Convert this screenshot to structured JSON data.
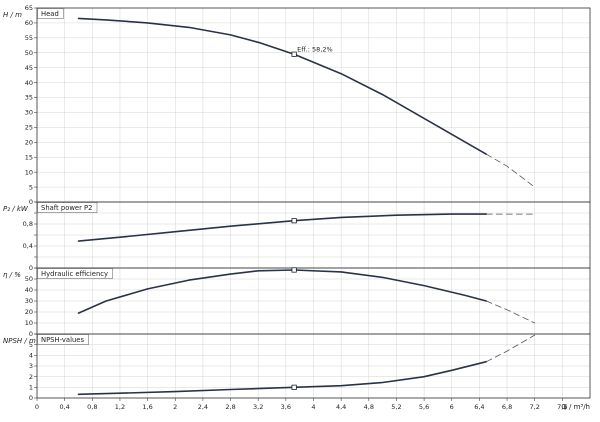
{
  "chart_data": [
    {
      "type": "line",
      "title": "Head",
      "ylabel": "H / m",
      "ylim": [
        0,
        65
      ],
      "yticks": [
        "0",
        "5",
        "10",
        "15",
        "20",
        "25",
        "30",
        "35",
        "40",
        "45",
        "50",
        "55",
        "60",
        "65"
      ],
      "grid": true,
      "series": [
        {
          "x": [
            0.6,
            1,
            1.6,
            2.2,
            2.8,
            3.2,
            3.72,
            4.4,
            5,
            5.6,
            6.2,
            6.5
          ],
          "y": [
            61.5,
            61,
            60,
            58.5,
            56,
            53.5,
            49.5,
            43,
            36,
            28,
            20,
            16
          ]
        },
        {
          "style": "dashed",
          "x": [
            6.5,
            6.8,
            7.2
          ],
          "y": [
            16,
            12,
            5
          ]
        }
      ],
      "annotation": {
        "x": 3.72,
        "y": 49.5,
        "text": "Eff.: 58,2%"
      }
    },
    {
      "type": "line",
      "title": "Shaft power P2",
      "ylabel": "P₂ / kW",
      "ylim": [
        0,
        1.2
      ],
      "yticks": [
        "0",
        "",
        "0,4",
        "",
        "0,8",
        "",
        "1,2"
      ],
      "grid": true,
      "series": [
        {
          "x": [
            0.6,
            1.2,
            2,
            2.8,
            3.72,
            4.4,
            5.2,
            6,
            6.5
          ],
          "y": [
            0.49,
            0.56,
            0.66,
            0.76,
            0.86,
            0.92,
            0.96,
            0.98,
            0.98
          ]
        },
        {
          "style": "dashed",
          "x": [
            6.5,
            7.2
          ],
          "y": [
            0.98,
            0.98
          ]
        }
      ],
      "marker": {
        "x": 3.72,
        "y": 0.86
      }
    },
    {
      "type": "line",
      "title": "Hydraulic efficiency",
      "ylabel": "η / %",
      "ylim": [
        0,
        60
      ],
      "yticks": [
        "0",
        "10",
        "20",
        "30",
        "40",
        "50",
        "60"
      ],
      "grid": true,
      "series": [
        {
          "x": [
            0.6,
            1,
            1.6,
            2.2,
            2.8,
            3.2,
            3.72,
            4.4,
            5,
            5.6,
            6.2,
            6.5
          ],
          "y": [
            19,
            30,
            41,
            49,
            54.5,
            57.5,
            58.2,
            56.5,
            51.5,
            44,
            35,
            30
          ]
        },
        {
          "style": "dashed",
          "x": [
            6.5,
            6.8,
            7.2
          ],
          "y": [
            30,
            22,
            10
          ]
        }
      ],
      "marker": {
        "x": 3.72,
        "y": 58.2
      }
    },
    {
      "type": "line",
      "title": "NPSH-values",
      "ylabel": "NPSH / m",
      "ylim": [
        0,
        6
      ],
      "yticks": [
        "0",
        "1",
        "2",
        "3",
        "4",
        "5",
        "6"
      ],
      "grid": true,
      "series": [
        {
          "x": [
            0.6,
            1.2,
            2,
            2.8,
            3.72,
            4.4,
            5,
            5.6,
            6,
            6.5
          ],
          "y": [
            0.35,
            0.45,
            0.6,
            0.8,
            1,
            1.15,
            1.45,
            2,
            2.6,
            3.4
          ]
        },
        {
          "style": "dashed",
          "x": [
            6.5,
            6.8,
            7.2
          ],
          "y": [
            3.4,
            4.4,
            5.9
          ]
        }
      ],
      "marker": {
        "x": 3.72,
        "y": 1
      }
    }
  ],
  "x_axis": {
    "label": "Q / m³/h",
    "xlim": [
      0,
      8
    ],
    "ticks": [
      "0",
      "0,4",
      "0,8",
      "1,2",
      "1,6",
      "2",
      "2,4",
      "2,8",
      "3,2",
      "3,6",
      "4",
      "4,4",
      "4,8",
      "5,2",
      "5,6",
      "6",
      "6,4",
      "6,8",
      "7,2",
      "7,6"
    ]
  }
}
